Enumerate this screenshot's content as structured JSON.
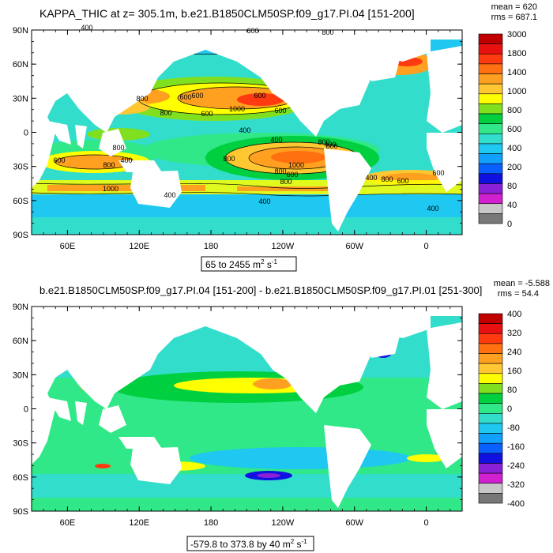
{
  "chart_data": [
    {
      "type": "heatmap",
      "title": "KAPPA_THIC at z= 305.1m, b.e21.B1850CLM50SP.f09_g17.PI.04 [151-200]",
      "stats": {
        "mean": "mean = 620",
        "rms": "rms = 687.1"
      },
      "range_label": {
        "text": "65 to 2455 m",
        "sup": "2",
        "tail": " s",
        "sup2": "-1"
      },
      "y_ticks": [
        "90N",
        "60N",
        "30N",
        "0",
        "30S",
        "60S",
        "90S"
      ],
      "x_ticks": [
        "60E",
        "120E",
        "180",
        "120W",
        "60W",
        "0"
      ],
      "colorbar": {
        "labels": [
          "3000",
          "1800",
          "1400",
          "1000",
          "800",
          "600",
          "400",
          "200",
          "80",
          "40",
          "0"
        ],
        "colors": [
          "#c00000",
          "#e81010",
          "#ff3a10",
          "#ff7010",
          "#ffa020",
          "#ffc832",
          "#ffff00",
          "#80e020",
          "#00d040",
          "#30e888",
          "#33ddcc",
          "#1ec8f0",
          "#12a0ff",
          "#0a60ff",
          "#1010e0",
          "#8a20d8",
          "#d020d0",
          "#c8c8c8",
          "#787878"
        ]
      },
      "contour_labels": [
        "400",
        "600",
        "800",
        "600",
        "800",
        "600",
        "800",
        "600",
        "600",
        "1000",
        "600",
        "400",
        "400",
        "800",
        "400",
        "800",
        "400",
        "600",
        "800",
        "800",
        "800",
        "1000",
        "800",
        "600",
        "1000",
        "400",
        "400",
        "800",
        "400",
        "800",
        "600",
        "600",
        "400"
      ],
      "xlim": [
        30,
        390
      ],
      "ylim": [
        -90,
        90
      ]
    },
    {
      "type": "heatmap",
      "title": "b.e21.B1850CLM50SP.f09_g17.PI.04 [151-200] - b.e21.B1850CLM50SP.f09_g17.PI.01 [251-300]",
      "stats": {
        "mean": "mean = -5.588",
        "rms": "rms = 54.4"
      },
      "range_label": {
        "text": "-579.8 to 373.8 by 40 m",
        "sup": "2",
        "tail": " s",
        "sup2": "-1"
      },
      "y_ticks": [
        "90N",
        "60N",
        "30N",
        "0",
        "30S",
        "60S",
        "90S"
      ],
      "x_ticks": [
        "60E",
        "120E",
        "180",
        "120W",
        "60W",
        "0"
      ],
      "colorbar": {
        "labels": [
          "400",
          "320",
          "240",
          "160",
          "80",
          "0",
          "-80",
          "-160",
          "-240",
          "-320",
          "-400"
        ],
        "colors": [
          "#c00000",
          "#e81010",
          "#ff3a10",
          "#ff7010",
          "#ffa020",
          "#ffc832",
          "#ffff00",
          "#80e020",
          "#00d040",
          "#30e888",
          "#33ddcc",
          "#1ec8f0",
          "#12a0ff",
          "#0a60ff",
          "#1010e0",
          "#8a20d8",
          "#d020d0",
          "#c8c8c8",
          "#787878"
        ]
      },
      "xlim": [
        30,
        390
      ],
      "ylim": [
        -90,
        90
      ]
    }
  ]
}
